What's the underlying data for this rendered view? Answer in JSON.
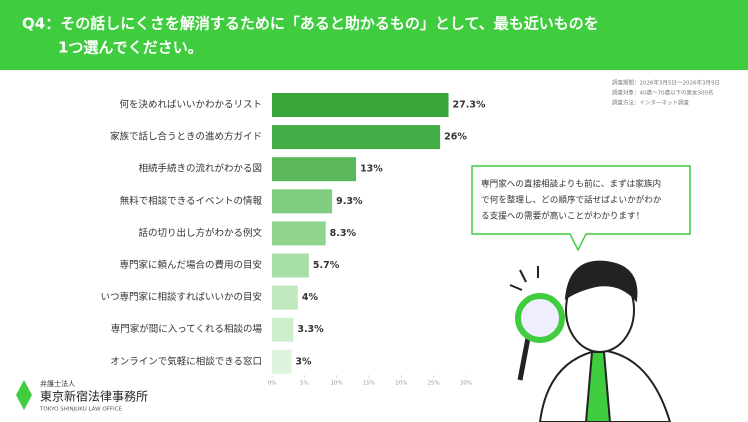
{
  "header": {
    "title_lines": [
      "Q4：その話しにくさを解消するために「あると助かるもの」として、最も近いものを",
      "1つ選んでください。"
    ]
  },
  "survey_info": [
    "調査期間：2026年3月5日～2026年3月9日",
    "調査対象：40歳〜70歳以下の男女300名",
    "調査方法：インターネット調査"
  ],
  "chart_data": {
    "type": "hbar",
    "categories": [
      "何を決めればいいかわかるリスト",
      "家族で話し合うときの進め方ガイド",
      "相続手続きの流れがわかる図",
      "無料で相談できるイベントの情報",
      "話の切り出し方がわかる例文",
      "専門家に頼んだ場合の費用の目安",
      "いつ専門家に相談すればいいかの目安",
      "専門家が間に入ってくれる相談の場",
      "オンラインで気軽に相談できる窓口"
    ],
    "values": [
      27.3,
      26,
      13,
      9.3,
      8.3,
      5.7,
      4,
      3.3,
      3
    ],
    "value_labels": [
      "27.3%",
      "26%",
      "13%",
      "9.3%",
      "8.3%",
      "5.7%",
      "4%",
      "3.3%",
      "3%"
    ],
    "colors": [
      "#3aa63a",
      "#45ad45",
      "#5ab85a",
      "#80cc80",
      "#8fd48f",
      "#a8dfa8",
      "#bfe8bf",
      "#cdeecd",
      "#dcf3dc"
    ],
    "xlim": [
      0,
      30
    ],
    "xticks": [
      {
        "value": 0,
        "label": "0%"
      },
      {
        "value": 5,
        "label": "5%"
      },
      {
        "value": 10,
        "label": "10%"
      },
      {
        "value": 15,
        "label": "15%"
      },
      {
        "value": 20,
        "label": "20%"
      },
      {
        "value": 25,
        "label": "25%"
      },
      {
        "value": 30,
        "label": "30%"
      }
    ]
  },
  "bubble": {
    "lines": [
      "専門家への直接相談よりも前に、まずは家族内",
      "で何を整理し、どの順序で話せばよいかがわか",
      "る支援への需要が高いことがわかります！"
    ]
  },
  "logo": {
    "sub": "弁護士法人",
    "name": "東京新宿法律事務所",
    "english": "TOKYO SHINJUKU LAW OFFICE"
  }
}
